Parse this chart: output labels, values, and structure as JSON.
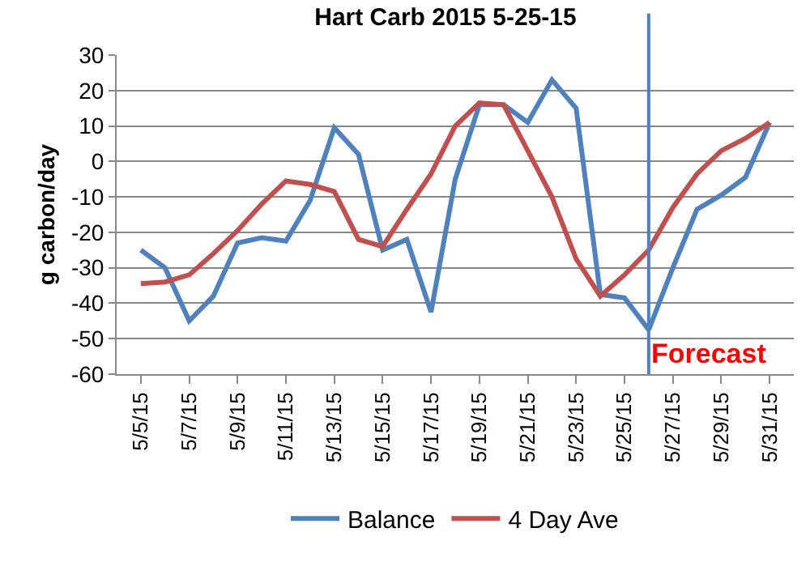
{
  "chart_data": {
    "type": "line",
    "title": "Hart Carb 2015 5-25-15",
    "ylabel": "g carbon/day",
    "x": [
      "2015-05-05",
      "2015-05-06",
      "2015-05-07",
      "2015-05-08",
      "2015-05-09",
      "2015-05-10",
      "2015-05-11",
      "2015-05-12",
      "2015-05-13",
      "2015-05-14",
      "2015-05-15",
      "2015-05-16",
      "2015-05-17",
      "2015-05-18",
      "2015-05-19",
      "2015-05-20",
      "2015-05-21",
      "2015-05-22",
      "2015-05-23",
      "2015-05-24",
      "2015-05-25",
      "2015-05-26",
      "2015-05-27",
      "2015-05-28",
      "2015-05-29",
      "2015-05-30",
      "2015-05-31"
    ],
    "series": [
      {
        "name": "Balance",
        "color": "#4f81bd",
        "values": [
          -25,
          -30,
          -45,
          -38,
          -23,
          -21.5,
          -22.5,
          -11,
          9.5,
          2,
          -25,
          -22,
          -42.5,
          -5,
          16,
          16,
          11,
          23,
          15,
          -37.5,
          -38.5,
          -47.5,
          -30,
          -13.5,
          -9.5,
          -4.5,
          11
        ]
      },
      {
        "name": "4 Day Ave",
        "color": "#c0504d",
        "values": [
          -34.5,
          -34,
          -32,
          -26,
          -19.5,
          -12,
          -5.5,
          -6.5,
          -8.5,
          -22,
          -24,
          -13.5,
          -3.5,
          10,
          16.5,
          16,
          3,
          -10,
          -27.5,
          -38,
          -32,
          -25,
          -13,
          -3.5,
          3,
          6.5,
          11
        ]
      }
    ],
    "xlim": [
      "2015-05-04",
      "2015-06-01"
    ],
    "xticks": [
      {
        "value": "2015-05-05",
        "label": "5/5/15"
      },
      {
        "value": "2015-05-07",
        "label": "5/7/15"
      },
      {
        "value": "2015-05-09",
        "label": "5/9/15"
      },
      {
        "value": "2015-05-11",
        "label": "5/11/15"
      },
      {
        "value": "2015-05-13",
        "label": "5/13/15"
      },
      {
        "value": "2015-05-15",
        "label": "5/15/15"
      },
      {
        "value": "2015-05-17",
        "label": "5/17/15"
      },
      {
        "value": "2015-05-19",
        "label": "5/19/15"
      },
      {
        "value": "2015-05-21",
        "label": "5/21/15"
      },
      {
        "value": "2015-05-23",
        "label": "5/23/15"
      },
      {
        "value": "2015-05-25",
        "label": "5/25/15"
      },
      {
        "value": "2015-05-27",
        "label": "5/27/15"
      },
      {
        "value": "2015-05-29",
        "label": "5/29/15"
      },
      {
        "value": "2015-05-31",
        "label": "5/31/15"
      }
    ],
    "ylim": [
      -60,
      30
    ],
    "yticks": [
      -60,
      -50,
      -40,
      -30,
      -20,
      -10,
      0,
      10,
      20,
      30
    ],
    "ref_lines": [
      {
        "axis": "x",
        "value": "2015-05-26",
        "label": "Forecast",
        "color": "#4f81bd"
      }
    ],
    "grid": "y",
    "legend": "bottom",
    "marker": "none",
    "line_style": "solid"
  }
}
